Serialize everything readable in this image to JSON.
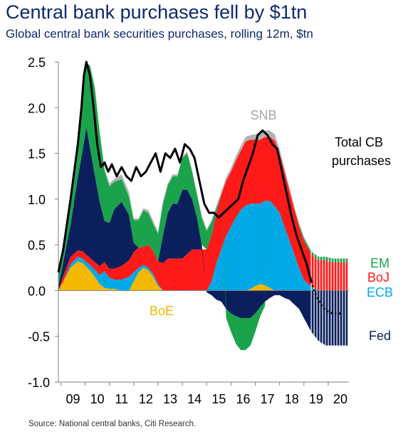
{
  "title": "Central bank purchases fell by $1tn",
  "subtitle": "Global central bank securities purchases, rolling 12m, $tn",
  "source": "Source: National central banks, Citi Research.",
  "chart_data": {
    "type": "area",
    "xlabel": "",
    "ylabel": "",
    "ylim": [
      -1.0,
      2.5
    ],
    "xlim": [
      2008.9,
      2020.85
    ],
    "x_ticks": [
      "09",
      "10",
      "11",
      "12",
      "13",
      "14",
      "15",
      "16",
      "17",
      "18",
      "19",
      "20"
    ],
    "y_ticks": [
      "2.5",
      "2.0",
      "1.5",
      "1.0",
      "0.5",
      "0.0",
      "-0.5",
      "-1.0"
    ],
    "y_tick_values": [
      2.5,
      2.0,
      1.5,
      1.0,
      0.5,
      0.0,
      -0.5,
      -1.0
    ],
    "grid": false,
    "forecast_start": 2019.3,
    "x": [
      2008.9,
      2009.1,
      2009.4,
      2009.7,
      2009.9,
      2010.05,
      2010.2,
      2010.4,
      2010.6,
      2010.8,
      2011.0,
      2011.2,
      2011.5,
      2011.8,
      2012.0,
      2012.2,
      2012.4,
      2012.6,
      2012.8,
      2013.0,
      2013.2,
      2013.4,
      2013.6,
      2013.8,
      2014.0,
      2014.2,
      2014.4,
      2014.6,
      2014.8,
      2015.0,
      2015.2,
      2015.4,
      2015.6,
      2015.8,
      2016.0,
      2016.2,
      2016.4,
      2016.6,
      2016.8,
      2017.0,
      2017.2,
      2017.4,
      2017.6,
      2017.8,
      2018.0,
      2018.2,
      2018.4,
      2018.6,
      2018.8,
      2019.0,
      2019.3,
      2019.6,
      2019.9,
      2020.2,
      2020.5,
      2020.8
    ],
    "series": [
      {
        "name": "BoE",
        "color": "#f5b800",
        "values": [
          0.0,
          0.1,
          0.25,
          0.32,
          0.3,
          0.26,
          0.22,
          0.15,
          0.07,
          0.03,
          0.02,
          0.02,
          0.0,
          0.0,
          0.1,
          0.2,
          0.25,
          0.22,
          0.15,
          0.05,
          0.0,
          0.0,
          0.0,
          0.0,
          0.0,
          0.0,
          0.0,
          0.0,
          0.0,
          0.0,
          0.0,
          0.0,
          0.0,
          0.0,
          0.0,
          0.0,
          0.0,
          0.0,
          0.02,
          0.05,
          0.07,
          0.06,
          0.03,
          0.0,
          0.0,
          0.0,
          0.0,
          0.0,
          0.0,
          0.0,
          0.0,
          0.0,
          0.0,
          0.0,
          0.0,
          0.0
        ]
      },
      {
        "name": "ECB",
        "color": "#00a9e6",
        "values": [
          0.0,
          0.0,
          0.04,
          0.05,
          0.05,
          0.05,
          0.06,
          0.08,
          0.1,
          0.18,
          0.12,
          0.1,
          0.12,
          0.15,
          0.1,
          0.05,
          0.03,
          0.03,
          0.03,
          0.02,
          0.0,
          0.0,
          0.0,
          0.0,
          0.0,
          0.0,
          0.0,
          0.0,
          0.0,
          0.0,
          0.1,
          0.3,
          0.45,
          0.6,
          0.7,
          0.8,
          0.88,
          0.93,
          0.93,
          0.9,
          0.88,
          0.92,
          0.95,
          0.92,
          0.85,
          0.7,
          0.55,
          0.4,
          0.25,
          0.12,
          0.04,
          0.0,
          0.0,
          0.0,
          0.0,
          0.0
        ]
      },
      {
        "name": "BoJ",
        "color": "#ff1a1a",
        "values": [
          0.0,
          0.06,
          0.08,
          0.07,
          0.08,
          0.08,
          0.08,
          0.08,
          0.1,
          0.1,
          0.1,
          0.12,
          0.15,
          0.18,
          0.22,
          0.22,
          0.2,
          0.25,
          0.25,
          0.25,
          0.3,
          0.35,
          0.35,
          0.35,
          0.35,
          0.4,
          0.45,
          0.45,
          0.45,
          0.45,
          0.5,
          0.55,
          0.6,
          0.6,
          0.6,
          0.62,
          0.65,
          0.7,
          0.7,
          0.7,
          0.7,
          0.7,
          0.7,
          0.72,
          0.65,
          0.6,
          0.55,
          0.5,
          0.45,
          0.42,
          0.36,
          0.33,
          0.33,
          0.31,
          0.31,
          0.31
        ]
      },
      {
        "name": "Fed",
        "color": "#0a1f5c",
        "values": [
          0.05,
          0.15,
          0.35,
          0.8,
          1.1,
          1.4,
          1.2,
          0.95,
          0.7,
          0.45,
          0.5,
          0.65,
          0.7,
          0.5,
          0.1,
          0.0,
          0.0,
          0.0,
          0.0,
          0.0,
          0.3,
          0.5,
          0.6,
          0.6,
          0.75,
          0.7,
          0.55,
          0.35,
          0.05,
          -0.02,
          -0.05,
          -0.1,
          -0.12,
          -0.2,
          -0.25,
          -0.28,
          -0.3,
          -0.3,
          -0.3,
          -0.25,
          -0.18,
          -0.12,
          -0.08,
          -0.05,
          -0.05,
          -0.08,
          -0.1,
          -0.15,
          -0.2,
          -0.3,
          -0.45,
          -0.55,
          -0.6,
          -0.6,
          -0.6,
          -0.6
        ]
      },
      {
        "name": "EM",
        "color": "#1aa34a",
        "values": [
          0.2,
          0.1,
          0.25,
          0.4,
          0.6,
          0.7,
          0.9,
          0.95,
          0.75,
          0.55,
          0.4,
          0.3,
          0.25,
          0.2,
          0.25,
          0.3,
          0.4,
          0.35,
          0.3,
          0.3,
          0.35,
          0.3,
          0.3,
          0.3,
          0.35,
          0.4,
          0.3,
          0.25,
          0.3,
          0.2,
          0.15,
          0.05,
          0.0,
          -0.1,
          -0.2,
          -0.3,
          -0.35,
          -0.35,
          -0.3,
          -0.2,
          -0.1,
          -0.05,
          0.0,
          0.0,
          0.0,
          0.0,
          0.0,
          0.0,
          0.02,
          0.03,
          0.03,
          0.04,
          0.04,
          0.04,
          0.04,
          0.04
        ]
      },
      {
        "name": "SNB",
        "color": "#b3b3b3",
        "values": [
          0.0,
          0.0,
          0.0,
          0.0,
          0.0,
          0.0,
          0.0,
          0.02,
          0.03,
          0.03,
          0.03,
          0.03,
          0.05,
          0.05,
          0.02,
          0.02,
          0.02,
          0.03,
          0.03,
          0.02,
          0.02,
          0.02,
          0.02,
          0.02,
          0.02,
          0.02,
          0.02,
          0.02,
          0.02,
          0.02,
          0.02,
          0.03,
          0.03,
          0.04,
          0.04,
          0.05,
          0.05,
          0.05,
          0.05,
          0.06,
          0.07,
          0.07,
          0.07,
          0.07,
          0.05,
          0.04,
          0.03,
          0.02,
          0.02,
          0.02,
          0.0,
          0.0,
          0.0,
          0.0,
          0.0,
          0.0
        ]
      }
    ],
    "total": {
      "name": "Total CB purchases",
      "color": "#000000",
      "x": [
        2008.9,
        2009.1,
        2009.4,
        2009.7,
        2009.85,
        2009.95,
        2010.05,
        2010.2,
        2010.35,
        2010.5,
        2010.65,
        2010.8,
        2010.95,
        2011.1,
        2011.3,
        2011.5,
        2011.7,
        2011.9,
        2012.1,
        2012.3,
        2012.5,
        2012.7,
        2012.9,
        2013.1,
        2013.3,
        2013.5,
        2013.7,
        2013.9,
        2014.1,
        2014.3,
        2014.5,
        2014.7,
        2014.9,
        2015.1,
        2015.3,
        2015.5,
        2015.7,
        2015.9,
        2016.1,
        2016.3,
        2016.5,
        2016.7,
        2016.9,
        2017.1,
        2017.3,
        2017.5,
        2017.7,
        2017.9,
        2018.1,
        2018.3,
        2018.5,
        2018.7,
        2018.9,
        2019.1,
        2019.3,
        2019.5,
        2019.7,
        2019.9,
        2020.2,
        2020.5
      ],
      "values": [
        0.2,
        0.45,
        1.0,
        1.6,
        2.0,
        2.35,
        2.5,
        2.35,
        2.0,
        1.6,
        1.35,
        1.4,
        1.3,
        1.38,
        1.25,
        1.35,
        1.25,
        1.2,
        1.35,
        1.25,
        1.3,
        1.4,
        1.5,
        1.3,
        1.5,
        1.45,
        1.55,
        1.4,
        1.6,
        1.55,
        1.45,
        1.2,
        0.95,
        0.85,
        0.85,
        0.8,
        0.85,
        0.9,
        0.95,
        1.0,
        1.2,
        1.35,
        1.5,
        1.7,
        1.75,
        1.7,
        1.6,
        1.55,
        1.3,
        1.05,
        0.8,
        0.6,
        0.45,
        0.3,
        0.1,
        -0.05,
        -0.15,
        -0.22,
        -0.25,
        -0.25
      ],
      "dotted_from_index": 54
    },
    "labels": {
      "snb": "SNB",
      "total": [
        "Total CB",
        "purchases"
      ],
      "em": "EM",
      "boj": "BoJ",
      "ecb": "ECB",
      "fed": "Fed",
      "boe": "BoE"
    }
  }
}
